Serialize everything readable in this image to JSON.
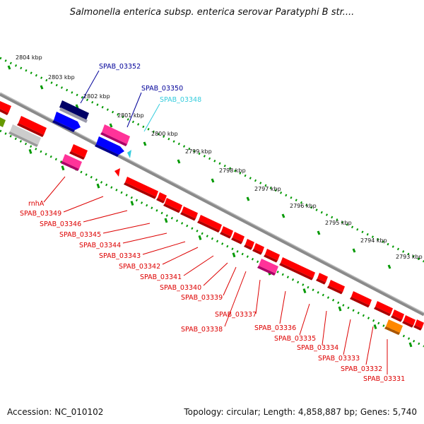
{
  "title": "Salmonella enterica subsp. enterica serovar Paratyphi B str....",
  "footer": {
    "accession": "Accession: NC_010102",
    "topology": "Topology: circular; Length: 4,858,887 bp; Genes: 5,740"
  },
  "colors": {
    "backbone": "#7a7a7a",
    "gene_red": "#ff0000",
    "gene_pink": "#ff3399",
    "gene_blue": "#0000ff",
    "gene_navy": "#000066",
    "gene_cyan": "#33ccdd",
    "gene_orange": "#ff8800",
    "gene_gray": "#bbbbbb",
    "gene_olive": "#669900",
    "ticks": "#009900",
    "label_red": "#dd0000",
    "label_blue": "#000099",
    "label_cyan": "#33ccdd"
  },
  "kbp_labels": [
    "2804 kbp",
    "2803 kbp",
    "2802 kbp",
    "2801 kbp",
    "2800 kbp",
    "2799 kbp",
    "2798 kbp",
    "2797 kbp",
    "2796 kbp",
    "2795 kbp",
    "2794 kbp",
    "2793 kbp"
  ],
  "top_gene_labels": [
    "SPAB_03352",
    "SPAB_03350",
    "SPAB_03348"
  ],
  "bottom_gene_labels": [
    "rnhA",
    "SPAB_03349",
    "SPAB_03346",
    "SPAB_03345",
    "SPAB_03344",
    "SPAB_03343",
    "SPAB_03342",
    "SPAB_03341",
    "SPAB_03340",
    "SPAB_03339",
    "SPAB_03337",
    "SPAB_03338",
    "SPAB_03336",
    "SPAB_03335",
    "SPAB_03334",
    "SPAB_03333",
    "SPAB_03332",
    "SPAB_03331"
  ]
}
